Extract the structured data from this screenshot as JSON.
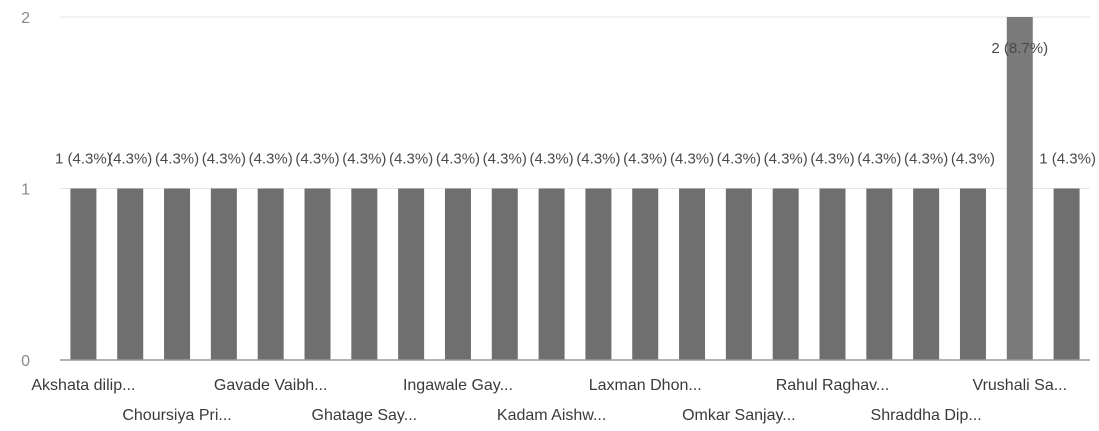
{
  "chart_data": {
    "type": "bar",
    "title": "",
    "xlabel": "",
    "ylabel": "",
    "ylim": [
      0,
      2
    ],
    "yticks": [
      "0",
      "1",
      "2"
    ],
    "grid": true,
    "legend": "none",
    "bar_color": "#6f6f6f",
    "categories": [
      "Akshata dilip...",
      "",
      "",
      "",
      "Gavade Vaibh...",
      "",
      "",
      "",
      "Ingawale Gay...",
      "",
      "",
      "",
      "Laxman Dhon...",
      "",
      "",
      "",
      "Rahul Raghav...",
      "",
      "",
      "",
      "Vrushali Sa...",
      ""
    ],
    "second_row_labels": [
      "Choursiya Pri...",
      "Ghatage Say...",
      "Kadam Aishw...",
      "Omkar Sanjay...",
      "Shraddha Dip..."
    ],
    "values": [
      1,
      1,
      1,
      1,
      1,
      1,
      1,
      1,
      1,
      1,
      1,
      1,
      1,
      1,
      1,
      1,
      1,
      1,
      1,
      1,
      2,
      1
    ],
    "data_labels": [
      "1 (4.3%)",
      "(4.3%)",
      "(4.3%)",
      "(4.3%)",
      "(4.3%)",
      "(4.3%)",
      "(4.3%)",
      "(4.3%)",
      "(4.3%)",
      "(4.3%)",
      "(4.3%)",
      "(4.3%)",
      "(4.3%)",
      "(4.3%)",
      "(4.3%)",
      "(4.3%)",
      "(4.3%)",
      "(4.3%)",
      "(4.3%)",
      "(4.3%)",
      "2 (8.7%)",
      "1 (4.3%)"
    ]
  }
}
